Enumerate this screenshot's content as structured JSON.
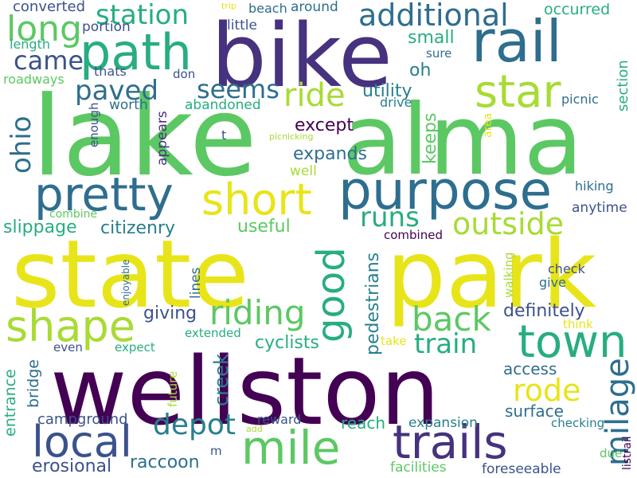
{
  "background": "#ffffff",
  "palette": {
    "yellow": "#e8e41a",
    "yellow_green": "#a8db34",
    "green": "#5cc863",
    "teal_green": "#27ad81",
    "teal": "#1f9a8a",
    "blue_teal": "#277f8e",
    "steel_blue": "#2e6e8e",
    "dark_blue": "#3b528b",
    "indigo": "#46327e",
    "dark_purple": "#440154"
  },
  "words": [
    {
      "text": "lake",
      "color": "#5cc863",
      "orientation": "horizontal"
    },
    {
      "text": "alma",
      "color": "#5cc863",
      "orientation": "horizontal"
    },
    {
      "text": "state",
      "color": "#e8e41a",
      "orientation": "horizontal"
    },
    {
      "text": "park",
      "color": "#e8e41a",
      "orientation": "horizontal"
    },
    {
      "text": "wellston",
      "color": "#440154",
      "orientation": "horizontal"
    },
    {
      "text": "bike",
      "color": "#46327e",
      "orientation": "horizontal"
    },
    {
      "text": "purpose",
      "color": "#2e6e8e",
      "orientation": "horizontal"
    },
    {
      "text": "rail",
      "color": "#2e6e8e",
      "orientation": "horizontal"
    },
    {
      "text": "path",
      "color": "#27ad81",
      "orientation": "horizontal"
    },
    {
      "text": "pretty",
      "color": "#2e6e8e",
      "orientation": "horizontal"
    },
    {
      "text": "short",
      "color": "#e8e41a",
      "orientation": "horizontal"
    },
    {
      "text": "star",
      "color": "#a8db34",
      "orientation": "horizontal"
    },
    {
      "text": "trails",
      "color": "#46327e",
      "orientation": "horizontal"
    },
    {
      "text": "mile",
      "color": "#5cc863",
      "orientation": "horizontal"
    },
    {
      "text": "local",
      "color": "#3b528b",
      "orientation": "horizontal"
    },
    {
      "text": "shape",
      "color": "#a8db34",
      "orientation": "horizontal"
    },
    {
      "text": "town",
      "color": "#27ad81",
      "orientation": "horizontal"
    },
    {
      "text": "good",
      "color": "#27ad81",
      "orientation": "vertical"
    },
    {
      "text": "milage",
      "color": "#2e6e8e",
      "orientation": "vertical"
    },
    {
      "text": "long",
      "color": "#5cc863",
      "orientation": "horizontal"
    },
    {
      "text": "station",
      "color": "#27ad81",
      "orientation": "horizontal"
    },
    {
      "text": "additional",
      "color": "#2e6e8e",
      "orientation": "horizontal"
    },
    {
      "text": "came",
      "color": "#3b528b",
      "orientation": "horizontal"
    },
    {
      "text": "ride",
      "color": "#a8db34",
      "orientation": "horizontal"
    },
    {
      "text": "paved",
      "color": "#2e6e8e",
      "orientation": "horizontal"
    },
    {
      "text": "seems",
      "color": "#2e6e8e",
      "orientation": "horizontal"
    },
    {
      "text": "ohio",
      "color": "#2e6e8e",
      "orientation": "vertical"
    },
    {
      "text": "back",
      "color": "#5cc863",
      "orientation": "horizontal"
    },
    {
      "text": "riding",
      "color": "#5cc863",
      "orientation": "horizontal"
    },
    {
      "text": "outside",
      "color": "#a8db34",
      "orientation": "horizontal"
    },
    {
      "text": "runs",
      "color": "#27ad81",
      "orientation": "horizontal"
    },
    {
      "text": "train",
      "color": "#27ad81",
      "orientation": "horizontal"
    },
    {
      "text": "rode",
      "color": "#e8e41a",
      "orientation": "horizontal"
    },
    {
      "text": "depot",
      "color": "#277f8e",
      "orientation": "horizontal"
    },
    {
      "text": "creek",
      "color": "#277f8e",
      "orientation": "vertical"
    },
    {
      "text": "except",
      "color": "#440154",
      "orientation": "horizontal"
    },
    {
      "text": "keeps",
      "color": "#5cc863",
      "orientation": "vertical"
    },
    {
      "text": "expands",
      "color": "#2e6e8e",
      "orientation": "horizontal"
    },
    {
      "text": "utility",
      "color": "#277f8e",
      "orientation": "horizontal"
    },
    {
      "text": "small",
      "color": "#27ad81",
      "orientation": "horizontal"
    },
    {
      "text": "oh",
      "color": "#277f8e",
      "orientation": "horizontal"
    },
    {
      "text": "citizenry",
      "color": "#277f8e",
      "orientation": "horizontal"
    },
    {
      "text": "useful",
      "color": "#5cc863",
      "orientation": "horizontal"
    },
    {
      "text": "slippage",
      "color": "#27ad81",
      "orientation": "horizontal"
    },
    {
      "text": "pedestrians",
      "color": "#277f8e",
      "orientation": "vertical"
    },
    {
      "text": "definitely",
      "color": "#3b528b",
      "orientation": "horizontal"
    },
    {
      "text": "giving",
      "color": "#3b528b",
      "orientation": "horizontal"
    },
    {
      "text": "cyclists",
      "color": "#27ad81",
      "orientation": "horizontal"
    },
    {
      "text": "access",
      "color": "#2e6e8e",
      "orientation": "horizontal"
    },
    {
      "text": "surface",
      "color": "#2e6e8e",
      "orientation": "horizontal"
    },
    {
      "text": "reach",
      "color": "#27ad81",
      "orientation": "horizontal"
    },
    {
      "text": "expansion",
      "color": "#277f8e",
      "orientation": "horizontal"
    },
    {
      "text": "campground",
      "color": "#3b528b",
      "orientation": "horizontal"
    },
    {
      "text": "entrance",
      "color": "#27ad81",
      "orientation": "vertical"
    },
    {
      "text": "bridge",
      "color": "#2e6e8e",
      "orientation": "vertical"
    },
    {
      "text": "erosional",
      "color": "#3b528b",
      "orientation": "horizontal"
    },
    {
      "text": "raccoon",
      "color": "#2e6e8e",
      "orientation": "horizontal"
    },
    {
      "text": "facilities",
      "color": "#5cc863",
      "orientation": "horizontal"
    },
    {
      "text": "foreseeable",
      "color": "#3b528b",
      "orientation": "horizontal"
    },
    {
      "text": "converted",
      "color": "#3b528b",
      "orientation": "horizontal"
    },
    {
      "text": "trip",
      "color": "#e8e41a",
      "orientation": "horizontal"
    },
    {
      "text": "beach",
      "color": "#2e6e8e",
      "orientation": "horizontal"
    },
    {
      "text": "around",
      "color": "#2e6e8e",
      "orientation": "horizontal"
    },
    {
      "text": "occurred",
      "color": "#27ad81",
      "orientation": "horizontal"
    },
    {
      "text": "length",
      "color": "#27ad81",
      "orientation": "horizontal"
    },
    {
      "text": "portion",
      "color": "#3b528b",
      "orientation": "horizontal"
    },
    {
      "text": "little",
      "color": "#3b528b",
      "orientation": "horizontal"
    },
    {
      "text": "sure",
      "color": "#2e6e8e",
      "orientation": "horizontal"
    },
    {
      "text": "roadways",
      "color": "#5cc863",
      "orientation": "horizontal"
    },
    {
      "text": "thats",
      "color": "#3b528b",
      "orientation": "horizontal"
    },
    {
      "text": "don",
      "color": "#3b528b",
      "orientation": "horizontal"
    },
    {
      "text": "worth",
      "color": "#2e6e8e",
      "orientation": "horizontal"
    },
    {
      "text": "abandoned",
      "color": "#27ad81",
      "orientation": "horizontal"
    },
    {
      "text": "drive",
      "color": "#277f8e",
      "orientation": "horizontal"
    },
    {
      "text": "picnic",
      "color": "#2e6e8e",
      "orientation": "horizontal"
    },
    {
      "text": "section",
      "color": "#27ad81",
      "orientation": "vertical"
    },
    {
      "text": "area",
      "color": "#e8e41a",
      "orientation": "vertical"
    },
    {
      "text": "enough",
      "color": "#3b528b",
      "orientation": "vertical"
    },
    {
      "text": "appears",
      "color": "#46327e",
      "orientation": "vertical"
    },
    {
      "text": "t",
      "color": "#3b528b",
      "orientation": "horizontal"
    },
    {
      "text": "picnicking",
      "color": "#a8db34",
      "orientation": "horizontal"
    },
    {
      "text": "well",
      "color": "#a8db34",
      "orientation": "horizontal"
    },
    {
      "text": "hiking",
      "color": "#2e6e8e",
      "orientation": "horizontal"
    },
    {
      "text": "anytime",
      "color": "#3b528b",
      "orientation": "horizontal"
    },
    {
      "text": "combine",
      "color": "#5cc863",
      "orientation": "horizontal"
    },
    {
      "text": "combined",
      "color": "#440154",
      "orientation": "horizontal"
    },
    {
      "text": "enjoyable",
      "color": "#2e6e8e",
      "orientation": "vertical"
    },
    {
      "text": "lines",
      "color": "#2e6e8e",
      "orientation": "vertical"
    },
    {
      "text": "check",
      "color": "#3b528b",
      "orientation": "horizontal"
    },
    {
      "text": "give",
      "color": "#2e6e8e",
      "orientation": "horizontal"
    },
    {
      "text": "walking",
      "color": "#a8db34",
      "orientation": "vertical"
    },
    {
      "text": "think",
      "color": "#e8e41a",
      "orientation": "horizontal"
    },
    {
      "text": "extended",
      "color": "#27ad81",
      "orientation": "horizontal"
    },
    {
      "text": "even",
      "color": "#3b528b",
      "orientation": "horizontal"
    },
    {
      "text": "expect",
      "color": "#27ad81",
      "orientation": "horizontal"
    },
    {
      "text": "take",
      "color": "#e8e41a",
      "orientation": "horizontal"
    },
    {
      "text": "future",
      "color": "#a8db34",
      "orientation": "vertical"
    },
    {
      "text": "add",
      "color": "#a8db34",
      "orientation": "horizontal"
    },
    {
      "text": "reward",
      "color": "#3b528b",
      "orientation": "horizontal"
    },
    {
      "text": "checking",
      "color": "#277f8e",
      "orientation": "horizontal"
    },
    {
      "text": "m",
      "color": "#3b528b",
      "orientation": "horizontal"
    },
    {
      "text": "due",
      "color": "#5cc863",
      "orientation": "horizontal"
    },
    {
      "text": "listrail",
      "color": "#440154",
      "orientation": "vertical"
    }
  ]
}
